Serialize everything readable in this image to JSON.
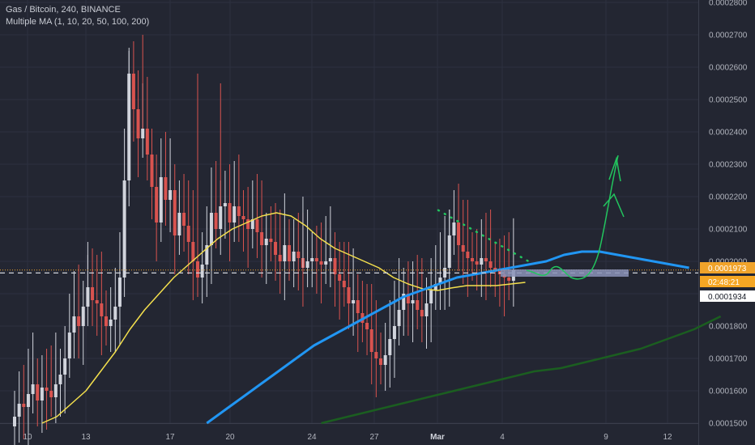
{
  "legend": {
    "symbol_line": "Gas / Bitcoin, 240, BINANCE",
    "indicator_line": "Multiple MA (1, 10, 20, 50, 100, 200)"
  },
  "colors": {
    "background": "#232632",
    "grid": "#2c3040",
    "up_candle": "#d1d4dc",
    "down_candle": "#d9534f",
    "ma_yellow": "#f4e04d",
    "ma_blue": "#2196f3",
    "ma_green": "#1b5e20",
    "projection": "#22c55e",
    "current_price_bg": "#f0a32a",
    "support_zone": "#8b93b8",
    "label_white_bg": "#ffffff"
  },
  "price_labels": {
    "current_price": "0.0001973",
    "countdown": "02:48:21",
    "crosshair_price": "0.0001934"
  },
  "chart_data": {
    "type": "candlestick",
    "title": "Gas / Bitcoin, 240, BINANCE",
    "yaxis_ticks": [
      "0.0002800",
      "0.0002700",
      "0.0002600",
      "0.0002500",
      "0.0002400",
      "0.0002300",
      "0.0002200",
      "0.0002100",
      "0.0002000",
      "0.0001900",
      "0.0001800",
      "0.0001700",
      "0.0001600",
      "0.0001500"
    ],
    "ylim": [
      0.00015,
      0.00028
    ],
    "xaxis_ticks": [
      {
        "label": "10",
        "bold": false
      },
      {
        "label": "13",
        "bold": false
      },
      {
        "label": "17",
        "bold": false
      },
      {
        "label": "20",
        "bold": false
      },
      {
        "label": "24",
        "bold": false
      },
      {
        "label": "27",
        "bold": false
      },
      {
        "label": "Mar",
        "bold": true
      },
      {
        "label": "4",
        "bold": false
      },
      {
        "label": "9",
        "bold": false
      },
      {
        "label": "12",
        "bold": false
      }
    ],
    "candles_close_approx": [
      0.000152,
      0.000156,
      0.000155,
      0.000159,
      0.000162,
      0.000157,
      0.000161,
      0.00016,
      0.000158,
      0.000162,
      0.000165,
      0.00017,
      0.000178,
      0.000183,
      0.00018,
      0.000186,
      0.000192,
      0.000188,
      0.000187,
      0.000183,
      0.00018,
      0.000182,
      0.000186,
      0.000195,
      0.000225,
      0.000258,
      0.000247,
      0.000238,
      0.000241,
      0.000233,
      0.000223,
      0.000212,
      0.000226,
      0.000219,
      0.000222,
      0.000208,
      0.000215,
      0.000211,
      0.000206,
      0.0002,
      0.000195,
      0.000199,
      0.000205,
      0.000215,
      0.00021,
      0.000217,
      0.000218,
      0.000212,
      0.000217,
      0.000214,
      0.000213,
      0.00021,
      0.000213,
      0.000209,
      0.000205,
      0.000207,
      0.000206,
      0.000202,
      0.0002,
      0.000205,
      0.0002,
      0.000203,
      0.000201,
      0.000198,
      0.0002,
      0.000201,
      0.0002,
      0.000199,
      0.0002,
      0.000201,
      0.000196,
      0.000194,
      0.000192,
      0.000187,
      0.000188,
      0.000184,
      0.000181,
      0.000179,
      0.000172,
      0.00017,
      0.000168,
      0.000171,
      0.000176,
      0.00018,
      0.000185,
      0.00019,
      0.000187,
      0.000188,
      0.000185,
      0.000183,
      0.000187,
      0.000191,
      0.000193,
      0.000195,
      0.000198,
      0.000208,
      0.000212,
      0.000205,
      0.000203,
      0.000201,
      0.0002,
      0.000199,
      0.000201,
      0.0002,
      0.000198,
      0.000197,
      0.000196,
      0.000195,
      0.000194,
      0.0001973
    ],
    "series": [
      {
        "color_key": "ma_yellow",
        "values_start_index": 6,
        "values": [
          0.00015,
          0.000152,
          0.000156,
          0.00016,
          0.000166,
          0.000172,
          0.000179,
          0.000185,
          0.00019,
          0.000195,
          0.000199,
          0.000203,
          0.000207,
          0.00021,
          0.000212,
          0.000214,
          0.000215,
          0.000214,
          0.000211,
          0.000207,
          0.000204,
          0.000202,
          0.0002,
          0.000198,
          0.000195,
          0.000193,
          0.0001915,
          0.000191,
          0.0001918,
          0.0001925,
          0.0001925,
          0.0001925,
          0.000193,
          0.0001935
        ]
      },
      {
        "color_key": "ma_blue",
        "values_start_index": 42,
        "values": [
          0.00015,
          0.000154,
          0.000158,
          0.000162,
          0.000166,
          0.00017,
          0.000174,
          0.000177,
          0.00018,
          0.000183,
          0.000186,
          0.000189,
          0.000191,
          0.000193,
          0.000195,
          0.000196,
          0.000197,
          0.000198,
          0.000199,
          0.0002,
          0.000202,
          0.000203,
          0.000203,
          0.000202,
          0.000201,
          0.0002,
          0.000199,
          0.000198
        ]
      },
      {
        "color_key": "ma_green",
        "values_start_index": 67,
        "values": [
          0.00015,
          0.000152,
          0.000154,
          0.000156,
          0.000158,
          0.00016,
          0.000162,
          0.000164,
          0.000166,
          0.000167,
          0.000169,
          0.000171,
          0.000173,
          0.000176,
          0.000179,
          0.000183
        ]
      }
    ],
    "support_zone_low": 0.000193,
    "support_zone_high": 0.000194
  }
}
